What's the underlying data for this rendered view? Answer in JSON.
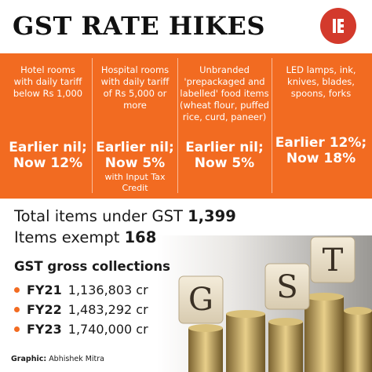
{
  "header": {
    "title": "GST RATE HIKES",
    "logo_icon": "indian-express-logo-icon",
    "logo_color": "#d33a2c"
  },
  "panel": {
    "background": "#f26b21",
    "columns": [
      {
        "desc": [
          "Hotel rooms",
          "with daily tariff",
          "below Rs 1,000"
        ],
        "rate": [
          "Earlier nil;",
          "Now 12%"
        ],
        "note": []
      },
      {
        "desc": [
          "Hospital rooms",
          "with daily tariff",
          "of Rs 5,000 or",
          "more"
        ],
        "rate": [
          "Earlier nil;",
          "Now 5%"
        ],
        "note": [
          "with Input Tax",
          "Credit"
        ]
      },
      {
        "desc": [
          "Unbranded",
          "'prepackaged and",
          "labelled' food items",
          "(wheat flour, puffed",
          "rice, curd, paneer)"
        ],
        "rate": [
          "Earlier nil;",
          "Now 5%"
        ],
        "note": []
      },
      {
        "desc": [
          "LED lamps, ink,",
          "knives, blades,",
          "spoons, forks"
        ],
        "rate": [
          "Earlier 12%;",
          "Now 18%"
        ],
        "note": []
      }
    ]
  },
  "summary": {
    "total_label": "Total items under GST",
    "total_value": "1,399",
    "exempt_label": "Items exempt",
    "exempt_value": "168"
  },
  "collections": {
    "title": "GST gross collections",
    "rows": [
      {
        "label": "FY21",
        "value": "1,136,803 cr"
      },
      {
        "label": "FY22",
        "value": "1,483,292 cr"
      },
      {
        "label": "FY23",
        "value": "1,740,000 cr"
      }
    ]
  },
  "illustration": {
    "name": "coin-stacks-with-gst-dice-image",
    "dice_letters": [
      "G",
      "S",
      "T"
    ]
  },
  "credit": {
    "label": "Graphic:",
    "name": "Abhishek Mitra"
  }
}
